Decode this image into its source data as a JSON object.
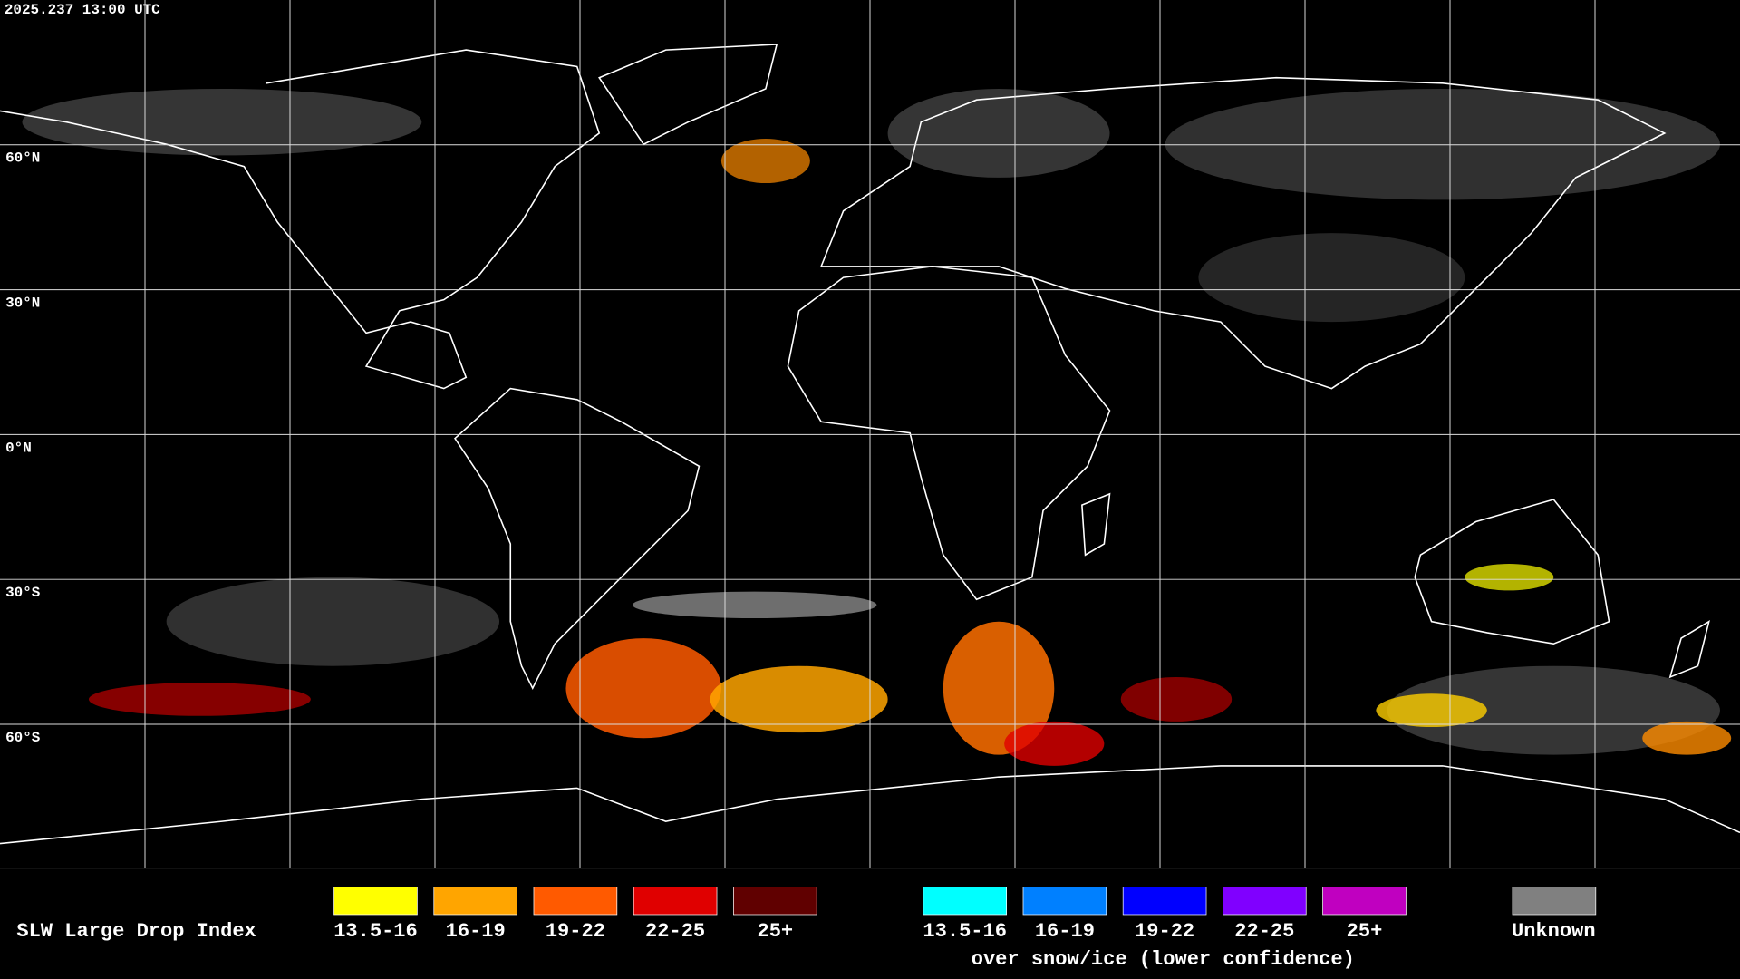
{
  "timestamp": "2025.237 13:00 UTC",
  "latitude_labels": [
    "60°N",
    "30°N",
    "0°N",
    "30°S",
    "60°S"
  ],
  "legend": {
    "title": "SLW Large Drop Index",
    "groups": [
      {
        "items": [
          {
            "label": "13.5-16",
            "color": "#ffff00"
          },
          {
            "label": "16-19",
            "color": "#ffa500"
          },
          {
            "label": "19-22",
            "color": "#ff5a00"
          },
          {
            "label": "22-25",
            "color": "#e00000"
          },
          {
            "label": "25+",
            "color": "#600000"
          }
        ]
      },
      {
        "items": [
          {
            "label": "13.5-16",
            "color": "#00ffff"
          },
          {
            "label": "16-19",
            "color": "#0080ff"
          },
          {
            "label": "19-22",
            "color": "#0000ff"
          },
          {
            "label": "22-25",
            "color": "#8000ff"
          },
          {
            "label": "25+",
            "color": "#c000c0"
          }
        ],
        "caption": "over snow/ice (lower confidence)"
      }
    ],
    "unknown": {
      "label": "Unknown",
      "color": "#808080"
    }
  }
}
